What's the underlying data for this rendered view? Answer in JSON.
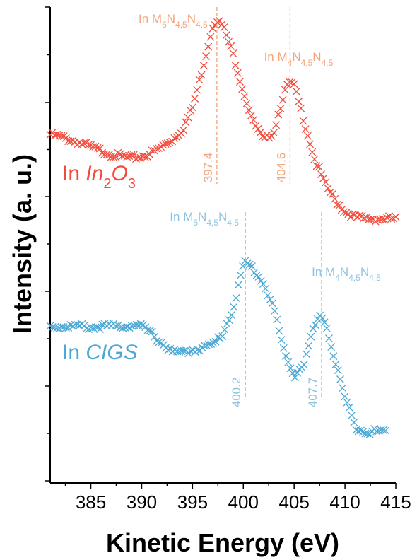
{
  "chart_data": {
    "type": "scatter",
    "xlabel": "Kinetic Energy (eV)",
    "ylabel": "Intensity (a. u.)",
    "xlim": [
      381,
      415
    ],
    "ylim": [
      0,
      10
    ],
    "x_ticks": [
      385,
      390,
      395,
      400,
      405,
      410,
      415
    ],
    "y_ticks_labeled": false,
    "marker": "x",
    "series": [
      {
        "name": "In In2O3",
        "label_prefix": "In ",
        "label_italic": "In",
        "label_sub": "2",
        "label_italic2": "O",
        "label_sub2": "3",
        "color": "#f24b3c",
        "annotation_color": "#f4a37a",
        "points": [
          [
            381,
            7.32
          ],
          [
            382,
            7.27
          ],
          [
            383,
            7.21
          ],
          [
            384,
            7.14
          ],
          [
            385,
            7.06
          ],
          [
            386,
            6.98
          ],
          [
            387,
            6.91
          ],
          [
            388,
            6.86
          ],
          [
            389,
            6.83
          ],
          [
            390,
            6.86
          ],
          [
            391,
            6.94
          ],
          [
            392,
            7.07
          ],
          [
            393,
            7.21
          ],
          [
            394,
            7.41
          ],
          [
            395,
            7.89
          ],
          [
            396,
            8.71
          ],
          [
            397,
            9.6
          ],
          [
            397.4,
            9.74
          ],
          [
            398,
            9.6
          ],
          [
            399,
            9.0
          ],
          [
            400,
            8.23
          ],
          [
            401,
            7.58
          ],
          [
            402,
            7.19
          ],
          [
            403,
            7.39
          ],
          [
            404,
            8.19
          ],
          [
            404.6,
            8.42
          ],
          [
            405,
            8.34
          ],
          [
            406,
            7.58
          ],
          [
            407,
            6.81
          ],
          [
            408,
            6.3
          ],
          [
            409,
            5.95
          ],
          [
            410,
            5.7
          ],
          [
            411,
            5.59
          ],
          [
            412,
            5.55
          ],
          [
            413,
            5.55
          ],
          [
            414,
            5.55
          ],
          [
            415,
            5.55
          ]
        ],
        "peaks": [
          {
            "x": 397.4,
            "value": "397.4",
            "label_base": "In M",
            "label_s1": "5",
            "label_mid": "N",
            "label_s2": "4,5",
            "label_mid2": "N",
            "label_s3": "4,5"
          },
          {
            "x": 404.6,
            "value": "404.6",
            "label_base": "In M",
            "label_s1": "4",
            "label_mid": "N",
            "label_s2": "4,5",
            "label_mid2": "N",
            "label_s3": "4,5"
          }
        ]
      },
      {
        "name": "In CIGS",
        "label_prefix": "In ",
        "label_italic": "CIGS",
        "color": "#4aa8d4",
        "annotation_color": "#8fc3e2",
        "points": [
          [
            381,
            3.29
          ],
          [
            382,
            3.29
          ],
          [
            383,
            3.29
          ],
          [
            384,
            3.29
          ],
          [
            385,
            3.27
          ],
          [
            386,
            3.29
          ],
          [
            387,
            3.29
          ],
          [
            388,
            3.29
          ],
          [
            389,
            3.32
          ],
          [
            390,
            3.29
          ],
          [
            391,
            3.14
          ],
          [
            392,
            2.93
          ],
          [
            393,
            2.76
          ],
          [
            394,
            2.73
          ],
          [
            395,
            2.79
          ],
          [
            396,
            2.85
          ],
          [
            397,
            2.9
          ],
          [
            398,
            3.14
          ],
          [
            399,
            3.67
          ],
          [
            400,
            4.56
          ],
          [
            400.2,
            4.64
          ],
          [
            401,
            4.49
          ],
          [
            402,
            4.19
          ],
          [
            403,
            3.67
          ],
          [
            404,
            2.75
          ],
          [
            405,
            2.25
          ],
          [
            406,
            2.52
          ],
          [
            407,
            3.29
          ],
          [
            407.7,
            3.52
          ],
          [
            408,
            3.42
          ],
          [
            409,
            2.58
          ],
          [
            410,
            1.8
          ],
          [
            411,
            1.18
          ],
          [
            412,
            1.08
          ],
          [
            413,
            1.08
          ],
          [
            414,
            1.08
          ]
        ],
        "peaks": [
          {
            "x": 400.2,
            "value": "400.2",
            "label_base": "In M",
            "label_s1": "5",
            "label_mid": "N",
            "label_s2": "4,5",
            "label_mid2": "N",
            "label_s3": "4,5"
          },
          {
            "x": 407.7,
            "value": "407.7",
            "label_base": "In M",
            "label_s1": "4",
            "label_mid": "N",
            "label_s2": "4,5",
            "label_mid2": "N",
            "label_s3": "4,5"
          }
        ]
      }
    ]
  }
}
